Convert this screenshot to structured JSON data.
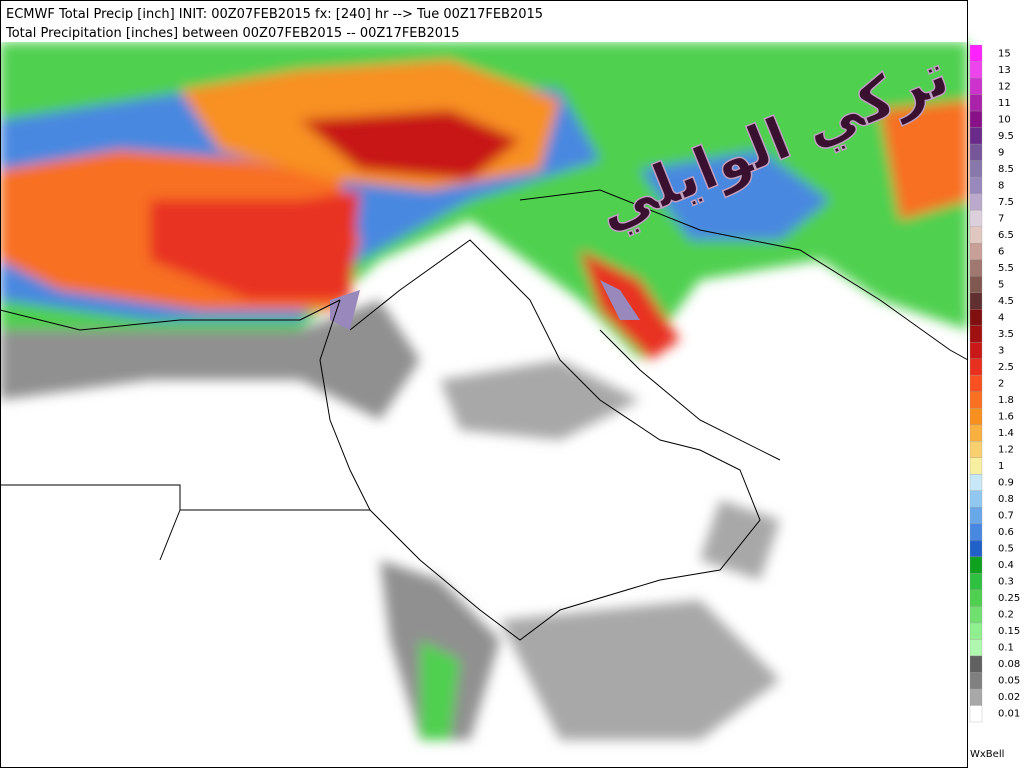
{
  "header": {
    "line1": "ECMWF Total Precip [inch] INIT: 00Z07FEB2015 fx: [240] hr --> Tue 00Z17FEB2015",
    "line2": "Total Precipitation [inches] between 00Z07FEB2015 -- 00Z17FEB2015"
  },
  "watermark": "تركي الوايلي",
  "credit": "WxBell",
  "legend": [
    {
      "label": "15",
      "color": "#ff22ff"
    },
    {
      "label": "13",
      "color": "#ee44ee"
    },
    {
      "label": "12",
      "color": "#cc33cc"
    },
    {
      "label": "11",
      "color": "#aa22aa"
    },
    {
      "label": "10",
      "color": "#881188"
    },
    {
      "label": "9.5",
      "color": "#6a2a8a"
    },
    {
      "label": "9",
      "color": "#775599"
    },
    {
      "label": "8.5",
      "color": "#8877aa"
    },
    {
      "label": "8",
      "color": "#9988bb"
    },
    {
      "label": "7.5",
      "color": "#bbaacc"
    },
    {
      "label": "7",
      "color": "#ddd0dd"
    },
    {
      "label": "6.5",
      "color": "#e0c8c0"
    },
    {
      "label": "6",
      "color": "#c8a098"
    },
    {
      "label": "5.5",
      "color": "#a07870"
    },
    {
      "label": "5",
      "color": "#805850"
    },
    {
      "label": "4.5",
      "color": "#603030"
    },
    {
      "label": "4",
      "color": "#801010"
    },
    {
      "label": "3.5",
      "color": "#a01010"
    },
    {
      "label": "3",
      "color": "#c81818"
    },
    {
      "label": "2.5",
      "color": "#e83020"
    },
    {
      "label": "2",
      "color": "#f85020"
    },
    {
      "label": "1.8",
      "color": "#f87020"
    },
    {
      "label": "1.6",
      "color": "#f89020"
    },
    {
      "label": "1.4",
      "color": "#f8b040"
    },
    {
      "label": "1.2",
      "color": "#f8d070"
    },
    {
      "label": "1",
      "color": "#f8f0a0"
    },
    {
      "label": "0.9",
      "color": "#c8e8f8"
    },
    {
      "label": "0.8",
      "color": "#90c8f0"
    },
    {
      "label": "0.7",
      "color": "#68a8e8"
    },
    {
      "label": "0.6",
      "color": "#4888e0"
    },
    {
      "label": "0.5",
      "color": "#2060c8"
    },
    {
      "label": "0.4",
      "color": "#10a020"
    },
    {
      "label": "0.3",
      "color": "#30c040"
    },
    {
      "label": "0.25",
      "color": "#50d050"
    },
    {
      "label": "0.2",
      "color": "#70e070"
    },
    {
      "label": "0.15",
      "color": "#90f090"
    },
    {
      "label": "0.1",
      "color": "#b0f8b0"
    },
    {
      "label": "0.08",
      "color": "#606060"
    },
    {
      "label": "0.05",
      "color": "#808080"
    },
    {
      "label": "0.02",
      "color": "#a8a8a8"
    },
    {
      "label": "0.01",
      "color": "#ffffff"
    }
  ]
}
